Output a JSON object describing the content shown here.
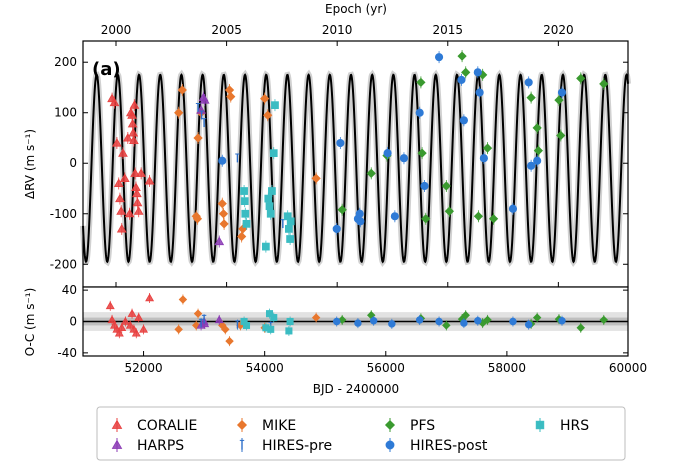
{
  "chart_data": [
    {
      "type": "scatter",
      "panel_label": "(a)",
      "top_xlabel": "Epoch (yr)",
      "top_ticks": [
        "2000",
        "2005",
        "2010",
        "2015",
        "2020"
      ],
      "top_tick_years": [
        2000,
        2005,
        2010,
        2015,
        2020
      ],
      "ylabel": "ΔRV (m s⁻¹)",
      "ylim": [
        -245,
        242
      ],
      "yticks": [
        200,
        100,
        0,
        -100,
        -200
      ],
      "xlim": [
        51000,
        60000
      ],
      "model": {
        "type": "sine",
        "amplitude": 185,
        "offset": -10,
        "period_days": 350,
        "phase_jd": 51138,
        "color": "#000000"
      },
      "series": [
        {
          "name": "CORALIE",
          "color": "#e8403f",
          "marker": "triangle-up",
          "points": [
            [
              51480,
              128
            ],
            [
              51520,
              120
            ],
            [
              51560,
              40
            ],
            [
              51590,
              -40
            ],
            [
              51610,
              -70
            ],
            [
              51630,
              -95
            ],
            [
              51640,
              -130
            ],
            [
              51660,
              20
            ],
            [
              51690,
              -30
            ],
            [
              51740,
              50
            ],
            [
              51770,
              -100
            ],
            [
              51790,
              100
            ],
            [
              51810,
              95
            ],
            [
              51820,
              78
            ],
            [
              51830,
              60
            ],
            [
              51840,
              45
            ],
            [
              51850,
              115
            ],
            [
              51860,
              -20
            ],
            [
              51875,
              -48
            ],
            [
              51890,
              -60
            ],
            [
              51900,
              -78
            ],
            [
              51920,
              -95
            ],
            [
              51960,
              -20
            ],
            [
              52100,
              -35
            ]
          ]
        },
        {
          "name": "MIKE",
          "color": "#e8772e",
          "marker": "diamond",
          "points": [
            [
              52580,
              100
            ],
            [
              52640,
              145
            ],
            [
              52870,
              -105
            ],
            [
              52890,
              -110
            ],
            [
              52900,
              50
            ],
            [
              52950,
              100
            ],
            [
              53300,
              -80
            ],
            [
              53320,
              -100
            ],
            [
              53330,
              -120
            ],
            [
              53420,
              145
            ],
            [
              53440,
              132
            ],
            [
              53620,
              -145
            ],
            [
              53640,
              -130
            ],
            [
              54000,
              128
            ],
            [
              54050,
              95
            ],
            [
              54850,
              -30
            ]
          ]
        },
        {
          "name": "HARPS",
          "color": "#8b3bb5",
          "marker": "triangle-up",
          "points": [
            [
              52950,
              105
            ],
            [
              52990,
              130
            ],
            [
              53010,
              125
            ],
            [
              53250,
              -155
            ]
          ]
        },
        {
          "name": "HIRES-pre",
          "color": "#2c6fc9",
          "marker": "tick",
          "points": [
            [
              52900,
              110
            ],
            [
              52960,
              95
            ],
            [
              53000,
              80
            ],
            [
              53550,
              10
            ],
            [
              54100,
              -90
            ],
            [
              54300,
              -120
            ]
          ]
        },
        {
          "name": "PFS",
          "color": "#3a9a2f",
          "marker": "diamond",
          "points": [
            [
              55280,
              -92
            ],
            [
              55760,
              -20
            ],
            [
              56020,
              15
            ],
            [
              56580,
              160
            ],
            [
              56600,
              20
            ],
            [
              56660,
              -110
            ],
            [
              57000,
              -45
            ],
            [
              57050,
              -95
            ],
            [
              57260,
              212
            ],
            [
              57320,
              180
            ],
            [
              57530,
              -105
            ],
            [
              57600,
              175
            ],
            [
              57680,
              30
            ],
            [
              57780,
              -110
            ],
            [
              58400,
              130
            ],
            [
              58500,
              70
            ],
            [
              58520,
              25
            ],
            [
              58860,
              125
            ],
            [
              58890,
              55
            ],
            [
              59220,
              168
            ],
            [
              59600,
              157
            ]
          ]
        },
        {
          "name": "HIRES-post",
          "color": "#2e7ad6",
          "marker": "circle",
          "points": [
            [
              53300,
              5
            ],
            [
              55190,
              -130
            ],
            [
              55250,
              40
            ],
            [
              55540,
              -110
            ],
            [
              55580,
              -115
            ],
            [
              55570,
              -100
            ],
            [
              56030,
              20
            ],
            [
              56150,
              -105
            ],
            [
              56300,
              10
            ],
            [
              56560,
              100
            ],
            [
              56640,
              -45
            ],
            [
              56880,
              210
            ],
            [
              57250,
              165
            ],
            [
              57290,
              85
            ],
            [
              57520,
              180
            ],
            [
              57550,
              140
            ],
            [
              57620,
              10
            ],
            [
              58100,
              -90
            ],
            [
              58360,
              160
            ],
            [
              58400,
              -5
            ],
            [
              58500,
              5
            ],
            [
              58910,
              140
            ]
          ]
        },
        {
          "name": "HRS",
          "color": "#3abcc2",
          "marker": "square",
          "points": [
            [
              53660,
              -55
            ],
            [
              53670,
              -75
            ],
            [
              53680,
              -100
            ],
            [
              53700,
              -120
            ],
            [
              54020,
              -165
            ],
            [
              54060,
              -70
            ],
            [
              54080,
              -85
            ],
            [
              54100,
              -100
            ],
            [
              54120,
              -55
            ],
            [
              54150,
              20
            ],
            [
              54170,
              115
            ],
            [
              54380,
              -105
            ],
            [
              54400,
              -130
            ],
            [
              54420,
              -150
            ],
            [
              54430,
              -115
            ]
          ]
        }
      ]
    },
    {
      "type": "scatter",
      "ylabel": "O-C (m s⁻¹)",
      "xlabel": "BJD - 2400000",
      "xlim": [
        51000,
        60000
      ],
      "xticks": [
        52000,
        54000,
        56000,
        58000,
        60000
      ],
      "ylim": [
        -44,
        44
      ],
      "yticks": [
        40,
        0,
        -40
      ],
      "series": [
        {
          "name": "CORALIE",
          "points": [
            [
              51450,
              20
            ],
            [
              51480,
              2
            ],
            [
              51520,
              -5
            ],
            [
              51560,
              -10
            ],
            [
              51600,
              -15
            ],
            [
              51640,
              -8
            ],
            [
              51700,
              0
            ],
            [
              51780,
              -5
            ],
            [
              51810,
              10
            ],
            [
              51840,
              -10
            ],
            [
              51880,
              -15
            ],
            [
              51920,
              5
            ],
            [
              52000,
              -10
            ],
            [
              52100,
              30
            ]
          ]
        },
        {
          "name": "MIKE",
          "points": [
            [
              52580,
              -10
            ],
            [
              52650,
              28
            ],
            [
              52870,
              -5
            ],
            [
              52900,
              10
            ],
            [
              53300,
              -5
            ],
            [
              53350,
              -10
            ],
            [
              53420,
              -25
            ],
            [
              53600,
              -5
            ],
            [
              54000,
              -8
            ],
            [
              54850,
              5
            ]
          ]
        },
        {
          "name": "HARPS",
          "points": [
            [
              52950,
              -5
            ],
            [
              53000,
              0
            ],
            [
              53010,
              -3
            ],
            [
              53250,
              2
            ]
          ]
        },
        {
          "name": "HIRES-pre",
          "points": [
            [
              52950,
              -2
            ],
            [
              53000,
              3
            ],
            [
              53550,
              -4
            ],
            [
              54100,
              -6
            ]
          ]
        },
        {
          "name": "PFS",
          "points": [
            [
              55280,
              2
            ],
            [
              55760,
              8
            ],
            [
              56580,
              4
            ],
            [
              57000,
              -5
            ],
            [
              57260,
              3
            ],
            [
              57320,
              8
            ],
            [
              57600,
              -2
            ],
            [
              57680,
              2
            ],
            [
              58400,
              -3
            ],
            [
              58500,
              5
            ],
            [
              58860,
              3
            ],
            [
              59220,
              -8
            ],
            [
              59600,
              2
            ]
          ]
        },
        {
          "name": "HIRES-post",
          "points": [
            [
              55190,
              0
            ],
            [
              55540,
              -2
            ],
            [
              55800,
              1
            ],
            [
              56100,
              -3
            ],
            [
              56560,
              2
            ],
            [
              56880,
              0
            ],
            [
              57290,
              -2
            ],
            [
              57520,
              1
            ],
            [
              58100,
              0
            ],
            [
              58360,
              -4
            ],
            [
              58910,
              1
            ]
          ]
        },
        {
          "name": "HRS",
          "points": [
            [
              53660,
              0
            ],
            [
              53700,
              -5
            ],
            [
              54020,
              -8
            ],
            [
              54080,
              10
            ],
            [
              54100,
              -10
            ],
            [
              54150,
              5
            ],
            [
              54400,
              -12
            ],
            [
              54420,
              0
            ]
          ]
        }
      ]
    }
  ],
  "legend": [
    {
      "name": "CORALIE",
      "color": "#e8403f",
      "marker": "triangle-up"
    },
    {
      "name": "MIKE",
      "color": "#e8772e",
      "marker": "diamond"
    },
    {
      "name": "PFS",
      "color": "#3a9a2f",
      "marker": "diamond"
    },
    {
      "name": "HRS",
      "color": "#3abcc2",
      "marker": "square"
    },
    {
      "name": "HARPS",
      "color": "#8b3bb5",
      "marker": "triangle-up"
    },
    {
      "name": "HIRES-pre",
      "color": "#2c6fc9",
      "marker": "tick"
    },
    {
      "name": "HIRES-post",
      "color": "#2e7ad6",
      "marker": "circle"
    }
  ]
}
